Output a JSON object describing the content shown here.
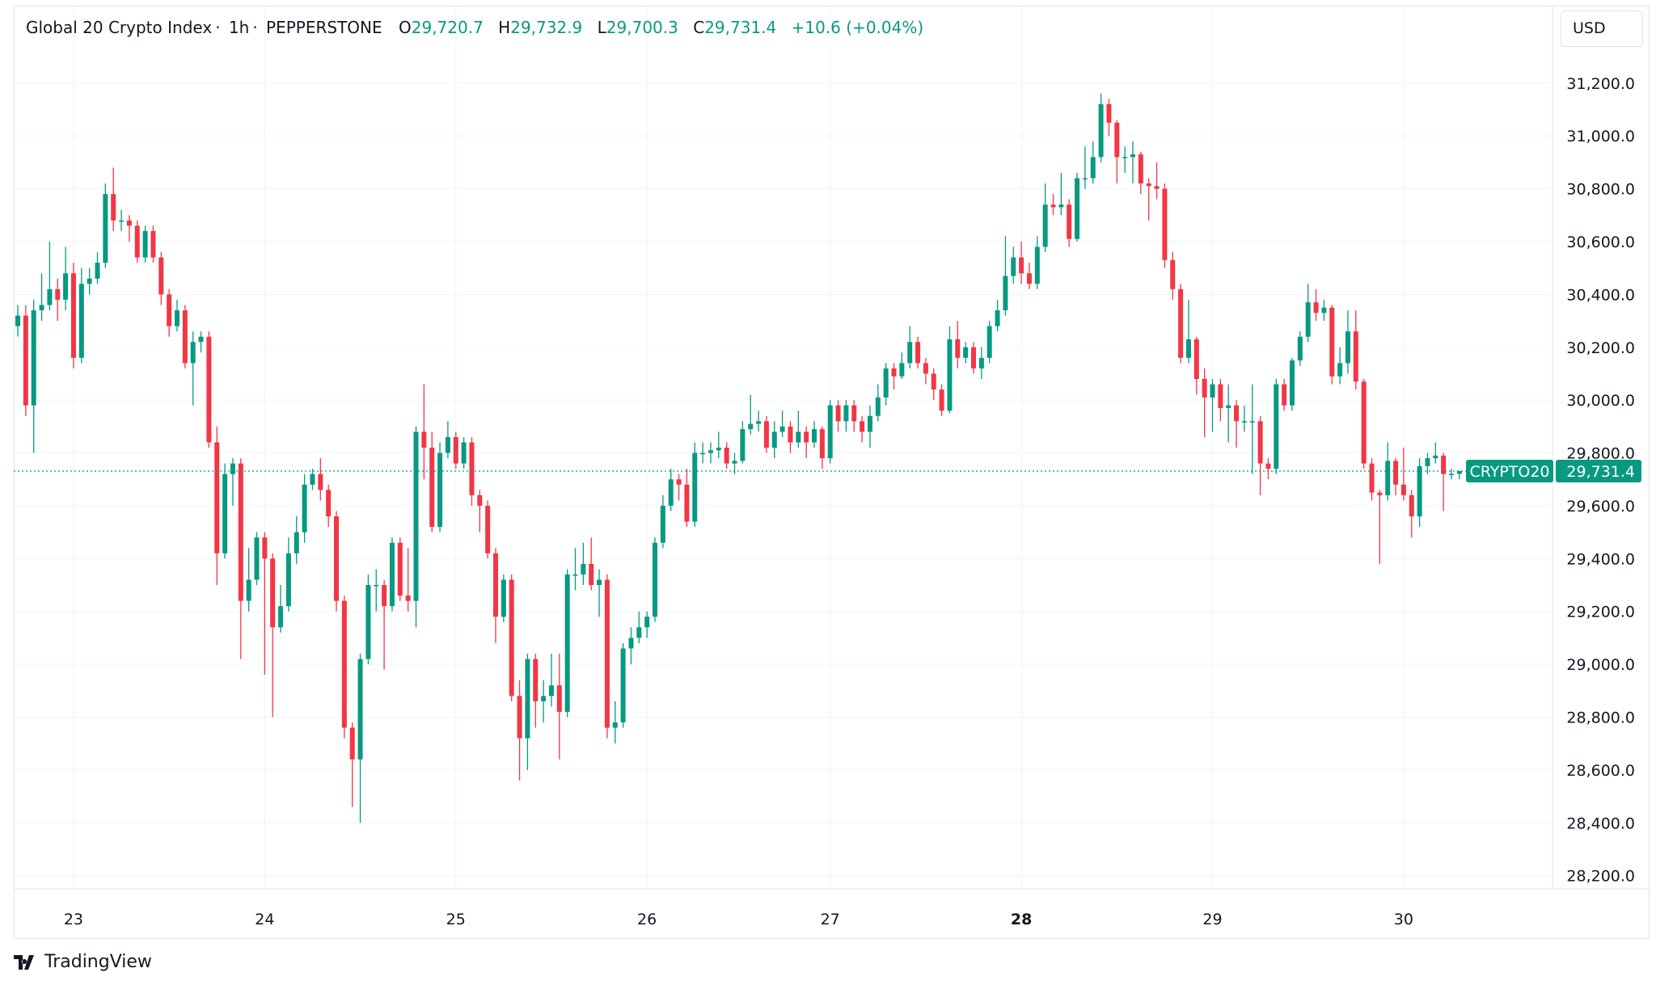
{
  "header": {
    "title": "Global 20 Crypto Index",
    "interval": "1h",
    "exchange": "PEPPERSTONE",
    "open_label": "O",
    "open": "29,720.7",
    "high_label": "H",
    "high": "29,732.9",
    "low_label": "L",
    "low": "29,700.3",
    "close_label": "C",
    "close": "29,731.4",
    "change": "+10.6 (+0.04%)"
  },
  "currency": "USD",
  "price_label": {
    "symbol": "CRYPTO20",
    "value": "29,731.4"
  },
  "branding": "TradingView",
  "colors": {
    "up": "#089981",
    "down": "#f23645",
    "grid": "#f0f3fa",
    "text": "#131722"
  },
  "chart_data": {
    "type": "candlestick",
    "timeframe": "1h",
    "ylim": [
      28150,
      31490
    ],
    "grid": true,
    "current_price": 29731.4,
    "y_ticks": [
      28200,
      28400,
      28600,
      28800,
      29000,
      29200,
      29400,
      29600,
      29800,
      30000,
      30200,
      30400,
      30600,
      30800,
      31000,
      31200
    ],
    "y_tick_labels": [
      "28,200.0",
      "28,400.0",
      "28,600.0",
      "28,800.0",
      "29,000.0",
      "29,200.0",
      "29,400.0",
      "29,600.0",
      "29,800.0",
      "30,000.0",
      "30,200.0",
      "30,400.0",
      "30,600.0",
      "30,800.0",
      "31,000.0",
      "31,200.0"
    ],
    "x_ticks": [
      {
        "label": "23",
        "candle_index": 7,
        "bold": false
      },
      {
        "label": "24",
        "candle_index": 31,
        "bold": false
      },
      {
        "label": "25",
        "candle_index": 55,
        "bold": false
      },
      {
        "label": "26",
        "candle_index": 79,
        "bold": false
      },
      {
        "label": "27",
        "candle_index": 102,
        "bold": false
      },
      {
        "label": "28",
        "candle_index": 126,
        "bold": true
      },
      {
        "label": "29",
        "candle_index": 150,
        "bold": false
      },
      {
        "label": "30",
        "candle_index": 174,
        "bold": false
      }
    ],
    "first_open": 30280,
    "close": [
      30320,
      29980,
      30340,
      30360,
      30420,
      30380,
      30480,
      30160,
      30440,
      30460,
      30520,
      30780,
      30680,
      30680,
      30660,
      30540,
      30640,
      30540,
      30400,
      30280,
      30340,
      30140,
      30220,
      30240,
      29840,
      29420,
      29720,
      29760,
      29240,
      29320,
      29480,
      29400,
      29140,
      29220,
      29420,
      29500,
      29680,
      29720,
      29660,
      29560,
      29240,
      28760,
      28640,
      29020,
      29300,
      29300,
      29220,
      29460,
      29260,
      29240,
      29880,
      29820,
      29520,
      29800,
      29860,
      29760,
      29840,
      29640,
      29600,
      29420,
      29180,
      29320,
      28880,
      28720,
      29020,
      28860,
      28880,
      28920,
      28820,
      29340,
      29340,
      29380,
      29300,
      29320,
      28760,
      28780,
      29060,
      29100,
      29140,
      29180,
      29460,
      29600,
      29700,
      29680,
      29540,
      29800,
      29800,
      29810,
      29820,
      29760,
      29770,
      29890,
      29910,
      29920,
      29820,
      29880,
      29900,
      29840,
      29880,
      29840,
      29890,
      29780,
      29980,
      29920,
      29980,
      29920,
      29880,
      29940,
      30010,
      30120,
      30090,
      30140,
      30220,
      30140,
      30100,
      30040,
      29960,
      30230,
      30160,
      30200,
      30120,
      30160,
      30280,
      30340,
      30470,
      30540,
      30480,
      30440,
      30580,
      30740,
      30730,
      30740,
      30610,
      30840,
      30840,
      30920,
      31120,
      31050,
      30920,
      30920,
      30930,
      30820,
      30810,
      30800,
      30530,
      30420,
      30160,
      30230,
      30080,
      30010,
      30060,
      29970,
      29980,
      29920,
      29920,
      29920,
      29760,
      29740,
      30060,
      29980,
      30150,
      30240,
      30370,
      30330,
      30350,
      30090,
      30140,
      30260,
      30070,
      29760,
      29650,
      29640,
      29770,
      29680,
      29640,
      29560,
      29750,
      29780,
      29790,
      29720,
      29720.7,
      29731.4
    ],
    "high": [
      30360,
      30360,
      30380,
      30480,
      30600,
      30460,
      30580,
      30520,
      30500,
      30500,
      30560,
      30820,
      30880,
      30720,
      30700,
      30680,
      30660,
      30660,
      30560,
      30420,
      30380,
      30360,
      30260,
      30260,
      30260,
      29900,
      29760,
      29780,
      29780,
      29440,
      29500,
      29500,
      29420,
      29300,
      29480,
      29560,
      29720,
      29740,
      29780,
      29680,
      29580,
      29260,
      28780,
      29040,
      29340,
      29360,
      29320,
      29480,
      29480,
      29440,
      29900,
      30060,
      29880,
      29840,
      29920,
      29880,
      29860,
      29860,
      29660,
      29620,
      29440,
      29340,
      29340,
      28940,
      29040,
      29040,
      28940,
      29040,
      29040,
      29360,
      29440,
      29460,
      29480,
      29360,
      29340,
      28860,
      29080,
      29140,
      29200,
      29200,
      29480,
      29640,
      29740,
      29720,
      29740,
      29840,
      29840,
      29840,
      29880,
      29840,
      29800,
      29920,
      30020,
      29960,
      29940,
      29920,
      29960,
      29920,
      29960,
      29900,
      29920,
      29900,
      30000,
      30000,
      30000,
      30000,
      29940,
      29980,
      30060,
      30140,
      30140,
      30180,
      30280,
      30240,
      30160,
      30120,
      30060,
      30280,
      30300,
      30220,
      30220,
      30200,
      30300,
      30380,
      30620,
      30580,
      30600,
      30520,
      30620,
      30820,
      30780,
      30860,
      30760,
      30860,
      30960,
      30980,
      31160,
      31140,
      31060,
      30960,
      30980,
      30940,
      30840,
      30900,
      30820,
      30560,
      30440,
      30380,
      30240,
      30120,
      30080,
      30080,
      30060,
      30000,
      29980,
      30060,
      29940,
      29780,
      30080,
      30080,
      30160,
      30260,
      30440,
      30420,
      30380,
      30360,
      30200,
      30340,
      30340,
      30080,
      29780,
      29660,
      29840,
      29780,
      29820,
      29660,
      29780,
      29800,
      29840,
      29800,
      29740,
      29732.9
    ],
    "low": [
      30240,
      29940,
      29800,
      30300,
      30340,
      30300,
      30340,
      30120,
      30140,
      30400,
      30440,
      30500,
      30640,
      30640,
      30600,
      30520,
      30520,
      30520,
      30360,
      30240,
      30260,
      30120,
      29980,
      30180,
      29820,
      29300,
      29400,
      29600,
      29020,
      29200,
      29300,
      28960,
      28800,
      29120,
      29200,
      29380,
      29460,
      29660,
      29620,
      29520,
      29200,
      28720,
      28460,
      28400,
      29000,
      29200,
      28980,
      29200,
      29240,
      29200,
      29140,
      29700,
      29500,
      29500,
      29780,
      29740,
      29740,
      29600,
      29500,
      29400,
      29080,
      29160,
      28860,
      28560,
      28600,
      28760,
      28780,
      28840,
      28640,
      28800,
      29280,
      29300,
      29280,
      29180,
      28720,
      28700,
      28760,
      29000,
      29080,
      29100,
      29160,
      29440,
      29580,
      29620,
      29520,
      29520,
      29760,
      29760,
      29780,
      29740,
      29720,
      29760,
      29870,
      29880,
      29800,
      29780,
      29860,
      29800,
      29820,
      29780,
      29820,
      29740,
      29760,
      29880,
      29880,
      29880,
      29840,
      29820,
      29920,
      29980,
      30040,
      30080,
      30120,
      30120,
      30060,
      30000,
      29940,
      29950,
      30120,
      30140,
      30100,
      30080,
      30140,
      30260,
      30320,
      30440,
      30440,
      30420,
      30420,
      30560,
      30700,
      30700,
      30580,
      30600,
      30800,
      30820,
      30900,
      31000,
      30820,
      30860,
      30820,
      30780,
      30680,
      30760,
      30500,
      30380,
      30140,
      30140,
      30020,
      29860,
      29880,
      29920,
      29840,
      29820,
      29880,
      29720,
      29640,
      29700,
      29720,
      29960,
      29960,
      30130,
      30220,
      30300,
      30300,
      30060,
      30060,
      30100,
      30040,
      29740,
      29620,
      29380,
      29620,
      29640,
      29620,
      29480,
      29520,
      29720,
      29760,
      29580,
      29700,
      29700.3
    ]
  }
}
